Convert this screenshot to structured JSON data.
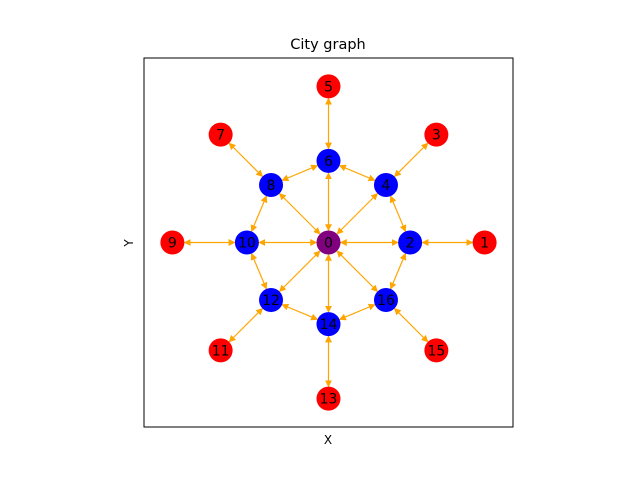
{
  "figure": {
    "title": "City graph",
    "xlabel": "X",
    "ylabel": "Y"
  },
  "colors": {
    "edge": "#FFA500",
    "center": "#800080",
    "inner": "#0000FF",
    "outer": "#FF0000",
    "frame": "#000000"
  },
  "chart_data": {
    "type": "network-graph",
    "directed": "bidirectional",
    "xlim": [
      -2.6,
      2.6
    ],
    "ylim": [
      -2.6,
      2.6
    ],
    "nodes": [
      {
        "id": 0,
        "label": "0",
        "x": 0.0,
        "y": 0.0,
        "group": "center"
      },
      {
        "id": 1,
        "label": "1",
        "x": 2.2,
        "y": 0.0,
        "group": "outer"
      },
      {
        "id": 2,
        "label": "2",
        "x": 1.15,
        "y": 0.0,
        "group": "inner"
      },
      {
        "id": 3,
        "label": "3",
        "x": 1.52,
        "y": 1.52,
        "group": "outer"
      },
      {
        "id": 4,
        "label": "4",
        "x": 0.81,
        "y": 0.81,
        "group": "inner"
      },
      {
        "id": 5,
        "label": "5",
        "x": 0.0,
        "y": 2.2,
        "group": "outer"
      },
      {
        "id": 6,
        "label": "6",
        "x": 0.0,
        "y": 1.15,
        "group": "inner"
      },
      {
        "id": 7,
        "label": "7",
        "x": -1.52,
        "y": 1.52,
        "group": "outer"
      },
      {
        "id": 8,
        "label": "8",
        "x": -0.81,
        "y": 0.81,
        "group": "inner"
      },
      {
        "id": 9,
        "label": "9",
        "x": -2.2,
        "y": 0.0,
        "group": "outer"
      },
      {
        "id": 10,
        "label": "10",
        "x": -1.15,
        "y": 0.0,
        "group": "inner"
      },
      {
        "id": 11,
        "label": "11",
        "x": -1.52,
        "y": -1.52,
        "group": "outer"
      },
      {
        "id": 12,
        "label": "12",
        "x": -0.81,
        "y": -0.81,
        "group": "inner"
      },
      {
        "id": 13,
        "label": "13",
        "x": 0.0,
        "y": -2.2,
        "group": "outer"
      },
      {
        "id": 14,
        "label": "14",
        "x": 0.0,
        "y": -1.15,
        "group": "inner"
      },
      {
        "id": 15,
        "label": "15",
        "x": 1.52,
        "y": -1.52,
        "group": "outer"
      },
      {
        "id": 16,
        "label": "16",
        "x": 0.81,
        "y": -0.81,
        "group": "inner"
      }
    ],
    "edges": [
      [
        0,
        2
      ],
      [
        0,
        4
      ],
      [
        0,
        6
      ],
      [
        0,
        8
      ],
      [
        0,
        10
      ],
      [
        0,
        12
      ],
      [
        0,
        14
      ],
      [
        0,
        16
      ],
      [
        2,
        1
      ],
      [
        4,
        3
      ],
      [
        6,
        5
      ],
      [
        8,
        7
      ],
      [
        10,
        9
      ],
      [
        12,
        11
      ],
      [
        14,
        13
      ],
      [
        16,
        15
      ],
      [
        2,
        4
      ],
      [
        4,
        6
      ],
      [
        6,
        8
      ],
      [
        8,
        10
      ],
      [
        10,
        12
      ],
      [
        12,
        14
      ],
      [
        14,
        16
      ],
      [
        16,
        2
      ]
    ]
  }
}
